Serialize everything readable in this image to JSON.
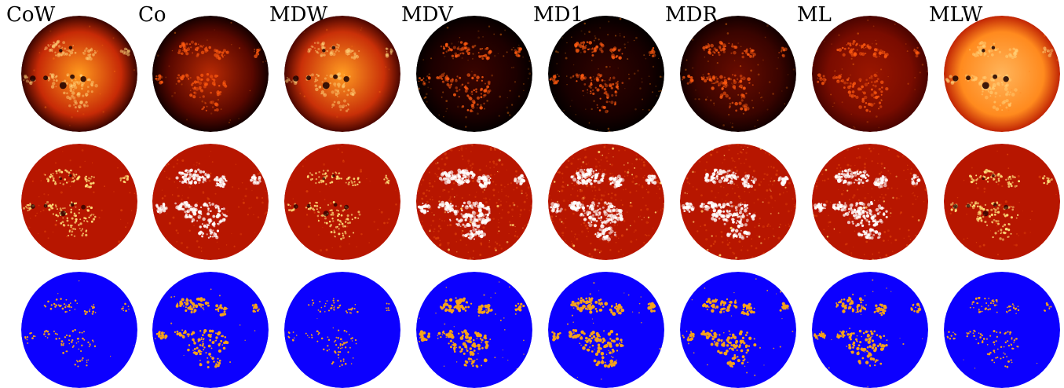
{
  "columns": [
    {
      "id": "cow",
      "label": "CoW"
    },
    {
      "id": "co",
      "label": "Co"
    },
    {
      "id": "mdw",
      "label": "MDW"
    },
    {
      "id": "mdv",
      "label": "MDV"
    },
    {
      "id": "md1",
      "label": "MD1"
    },
    {
      "id": "mdr",
      "label": "MDR"
    },
    {
      "id": "ml",
      "label": "ML"
    },
    {
      "id": "mlw",
      "label": "MLW"
    }
  ],
  "rows": [
    {
      "id": "intensity",
      "style": "bright-limb"
    },
    {
      "id": "contrast",
      "style": "noisy-red"
    },
    {
      "id": "segmentation",
      "style": "blue-mask"
    }
  ],
  "palettes": {
    "intensity": [
      {
        "center": "#ff9a1e",
        "edge": "#c72a06",
        "limb": "#3a0500"
      },
      {
        "center": "#b82a04",
        "edge": "#5a0800",
        "limb": "#140000"
      },
      {
        "center": "#ff9c22",
        "edge": "#c93008",
        "limb": "#4a0600"
      },
      {
        "center": "#3a0400",
        "edge": "#1c0000",
        "limb": "#050000"
      },
      {
        "center": "#320300",
        "edge": "#180000",
        "limb": "#040000"
      },
      {
        "center": "#6a0c00",
        "edge": "#3a0400",
        "limb": "#140000"
      },
      {
        "center": "#9a1600",
        "edge": "#7a0c00",
        "limb": "#4a0400"
      },
      {
        "center": "#ffb45a",
        "edge": "#ff8a1e",
        "limb": "#c02404"
      }
    ],
    "contrast_base": "#b71600",
    "contrast_alt": "#d63a08",
    "mask_base": "#0c00ff",
    "mask_spot": "#f6a21a",
    "bright_spot": "#ffe27a",
    "dark_spot": "#1a0000"
  },
  "noise_level": [
    0.15,
    0.35,
    0.15,
    0.95,
    0.95,
    0.7,
    0.55,
    0.15
  ],
  "region_strength": [
    0.4,
    0.85,
    0.35,
    1.0,
    1.0,
    0.9,
    0.9,
    0.45
  ],
  "sunspots_visible": [
    true,
    false,
    true,
    false,
    false,
    false,
    false,
    true
  ]
}
